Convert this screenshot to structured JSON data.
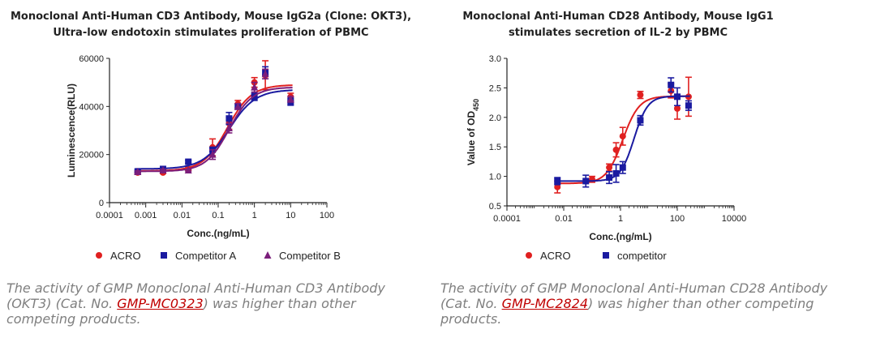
{
  "chart_data": [
    {
      "type": "scatter",
      "title_lines": [
        "Monoclonal Anti-Human CD3 Antibody, Mouse IgG2a (Clone: OKT3),",
        "Ultra-low endotoxin stimulates proliferation of PBMC"
      ],
      "xlabel": "Conc.(ng/mL)",
      "ylabel": "Luminescence(RLU)",
      "xscale": "log",
      "xlim": [
        0.0001,
        100
      ],
      "ylim": [
        0,
        60000
      ],
      "xticks": [
        0.0001,
        0.001,
        0.01,
        0.1,
        1,
        10,
        100
      ],
      "xtick_labels": [
        "0.0001",
        "0.001",
        "0.01",
        "0.1",
        "1",
        "10",
        "100"
      ],
      "yticks": [
        0,
        20000,
        40000,
        60000
      ],
      "ytick_labels": [
        "0",
        "20000",
        "40000",
        "60000"
      ],
      "legend_position": "bottom",
      "series": [
        {
          "name": "ACRO",
          "marker": "circle",
          "color": "#e02020",
          "x": [
            0.0006,
            0.003,
            0.015,
            0.07,
            0.2,
            0.35,
            1.0,
            2.0,
            10.0
          ],
          "y": [
            12500,
            12500,
            14000,
            23000,
            33000,
            41000,
            50000,
            53000,
            44000
          ],
          "err": [
            400,
            400,
            600,
            3500,
            2500,
            1500,
            2000,
            6000,
            1500
          ],
          "fit": {
            "bottom": 13200,
            "top": 49000,
            "ec50": 0.18,
            "hill": 1.3
          }
        },
        {
          "name": "Competitor A",
          "marker": "square",
          "color": "#1a1aa0",
          "x": [
            0.0006,
            0.003,
            0.015,
            0.07,
            0.2,
            0.35,
            1.0,
            2.0,
            10.0
          ],
          "y": [
            13000,
            14000,
            17000,
            22000,
            35000,
            40000,
            44000,
            54000,
            42000
          ],
          "err": [
            400,
            400,
            600,
            800,
            2500,
            1200,
            1500,
            2500,
            1500
          ],
          "fit": {
            "bottom": 14000,
            "top": 47000,
            "ec50": 0.2,
            "hill": 1.2
          }
        },
        {
          "name": "Competitor B",
          "marker": "triangle",
          "color": "#7b1e7b",
          "x": [
            0.0006,
            0.003,
            0.015,
            0.07,
            0.2,
            0.35,
            1.0,
            2.0,
            10.0
          ],
          "y": [
            12800,
            13500,
            13500,
            20000,
            31000,
            40000,
            48000,
            53500,
            43000
          ],
          "err": [
            400,
            400,
            400,
            2000,
            2000,
            1200,
            2000,
            2000,
            1200
          ],
          "fit": {
            "bottom": 13000,
            "top": 48000,
            "ec50": 0.2,
            "hill": 1.35
          }
        }
      ]
    },
    {
      "type": "scatter",
      "title_lines": [
        "Monoclonal Anti-Human CD28 Antibody, Mouse IgG1",
        "stimulates secretion of IL-2 by PBMC"
      ],
      "xlabel": "Conc.(ng/mL)",
      "ylabel_main": "Value of OD",
      "ylabel_sub": "450",
      "xscale": "log",
      "xlim": [
        0.0001,
        10000
      ],
      "ylim": [
        0.5,
        3.0
      ],
      "xticks": [
        0.0001,
        0.01,
        1,
        100,
        10000
      ],
      "xtick_labels": [
        "0.0001",
        "0.01",
        "1",
        "100",
        "10000"
      ],
      "yticks": [
        0.5,
        1.0,
        1.5,
        2.0,
        2.5,
        3.0
      ],
      "ytick_labels": [
        "0.5",
        "1.0",
        "1.5",
        "2.0",
        "2.5",
        "3.0"
      ],
      "legend_position": "bottom",
      "series": [
        {
          "name": "ACRO",
          "marker": "circle",
          "color": "#e02020",
          "x": [
            0.006,
            0.1,
            0.4,
            0.7,
            1.2,
            5.0,
            60,
            100,
            250
          ],
          "y": [
            0.82,
            0.95,
            1.15,
            1.45,
            1.68,
            2.38,
            2.45,
            2.15,
            2.35
          ],
          "err": [
            0.1,
            0.05,
            0.06,
            0.12,
            0.15,
            0.06,
            0.12,
            0.18,
            0.33
          ],
          "fit": {
            "bottom": 0.88,
            "top": 2.36,
            "ec50": 1.2,
            "hill": 1.5
          }
        },
        {
          "name": "competitor",
          "marker": "square",
          "color": "#1a1aa0",
          "x": [
            0.006,
            0.06,
            0.4,
            0.7,
            1.2,
            5.0,
            60,
            100,
            250
          ],
          "y": [
            0.92,
            0.92,
            0.98,
            1.05,
            1.15,
            1.95,
            2.55,
            2.35,
            2.2
          ],
          "err": [
            0.06,
            0.1,
            0.1,
            0.15,
            0.1,
            0.08,
            0.12,
            0.15,
            0.08
          ],
          "fit": {
            "bottom": 0.92,
            "top": 2.36,
            "ec50": 3.0,
            "hill": 1.8
          }
        }
      ]
    }
  ],
  "captions": [
    {
      "before": "The activity of GMP Monoclonal Anti-Human CD3 Antibody (OKT3) (Cat. No. ",
      "link": "GMP-MC0323",
      "after": ") was higher than other competing products."
    },
    {
      "before": "The activity of GMP Monoclonal Anti-Human CD28 Antibody (Cat. No. ",
      "link": "GMP-MC2824",
      "after": ") was higher than other competing products."
    }
  ]
}
